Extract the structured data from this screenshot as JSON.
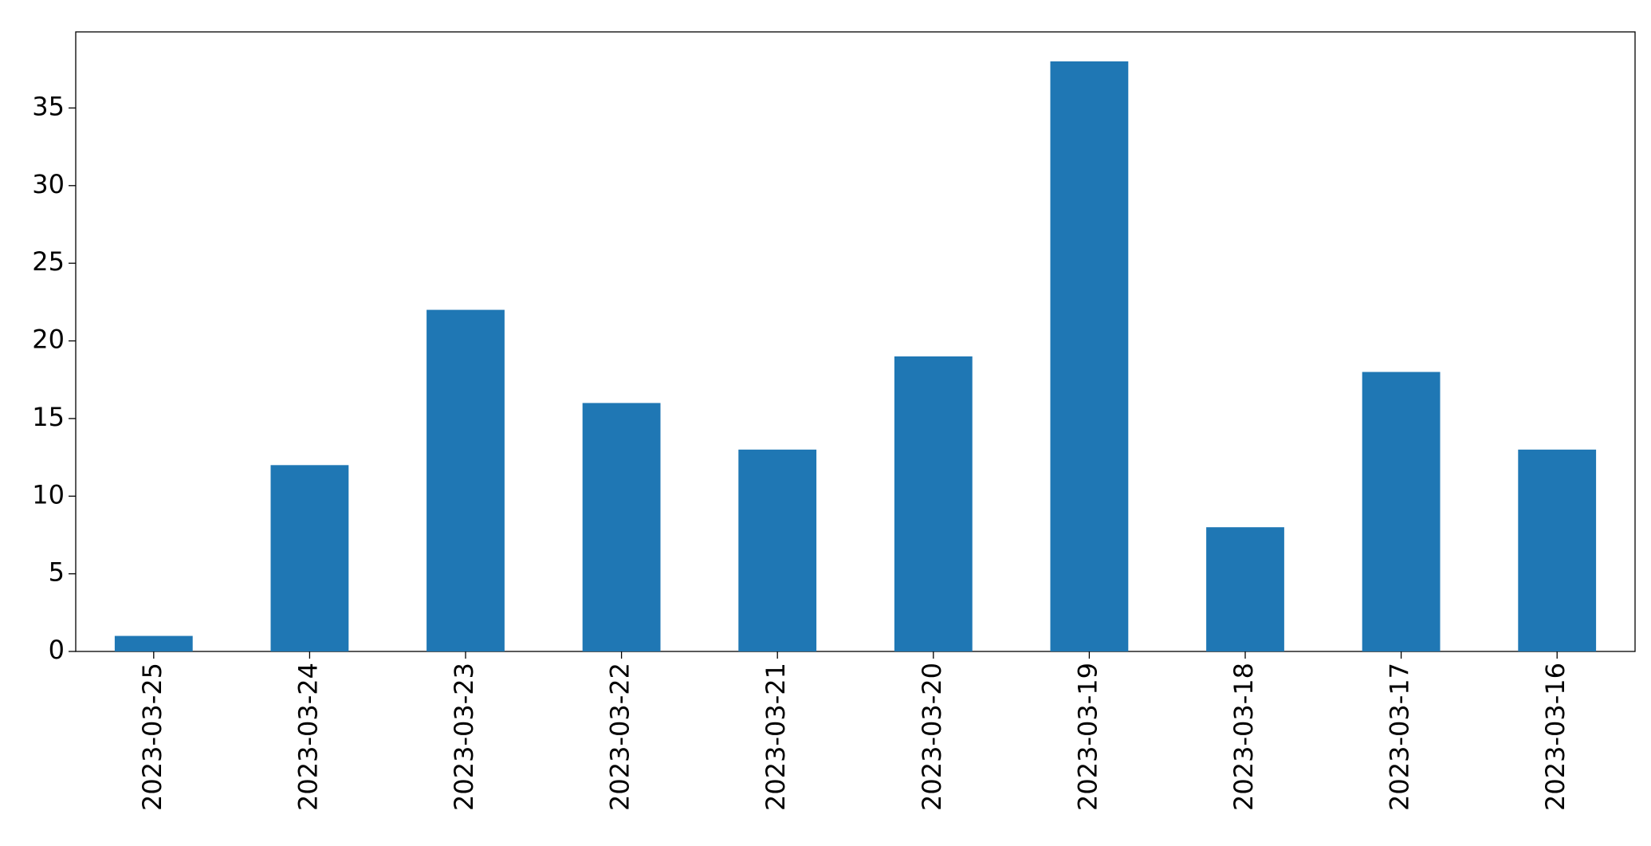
{
  "chart_data": {
    "type": "bar",
    "categories": [
      "2023-03-25",
      "2023-03-24",
      "2023-03-23",
      "2023-03-22",
      "2023-03-21",
      "2023-03-20",
      "2023-03-19",
      "2023-03-18",
      "2023-03-17",
      "2023-03-16"
    ],
    "values": [
      1,
      12,
      22,
      16,
      13,
      19,
      38,
      8,
      18,
      13
    ],
    "color": "#1f77b4",
    "ylim": [
      0,
      39.9
    ],
    "yticks": [
      0,
      5,
      10,
      15,
      20,
      25,
      30,
      35
    ],
    "grid": false
  }
}
